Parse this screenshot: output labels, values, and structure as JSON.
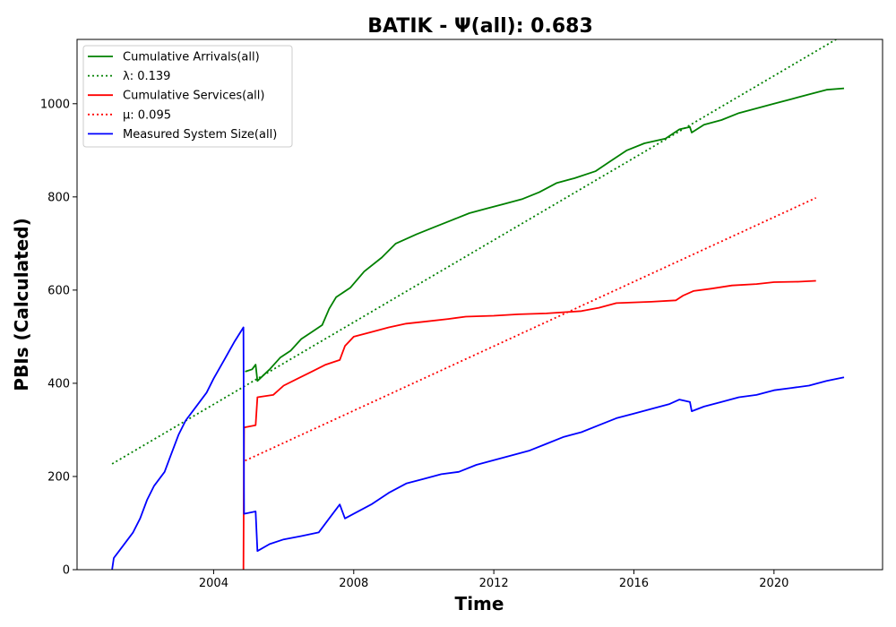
{
  "chart_data": {
    "type": "line",
    "title": "BATIK -  Ψ(all): 0.683",
    "xlabel": "Time",
    "ylabel": "PBIs (Calculated)",
    "xlim": [
      2000.1,
      2023.1
    ],
    "ylim": [
      0,
      1138
    ],
    "xticks": [
      2004,
      2008,
      2012,
      2016,
      2020
    ],
    "yticks": [
      0,
      200,
      400,
      600,
      800,
      1000
    ],
    "grid": false,
    "legend_position": "top-left",
    "series": [
      {
        "name": "Cumulative Arrivals(all)",
        "color": "#008000",
        "style": "solid",
        "points": [
          [
            2004.9,
            425
          ],
          [
            2005.1,
            430
          ],
          [
            2005.2,
            440
          ],
          [
            2005.25,
            405
          ],
          [
            2005.6,
            430
          ],
          [
            2005.9,
            455
          ],
          [
            2006.2,
            470
          ],
          [
            2006.5,
            495
          ],
          [
            2006.8,
            510
          ],
          [
            2007.1,
            525
          ],
          [
            2007.3,
            560
          ],
          [
            2007.5,
            585
          ],
          [
            2007.9,
            605
          ],
          [
            2008.3,
            640
          ],
          [
            2008.8,
            670
          ],
          [
            2009.2,
            700
          ],
          [
            2009.8,
            720
          ],
          [
            2010.3,
            735
          ],
          [
            2010.8,
            750
          ],
          [
            2011.3,
            765
          ],
          [
            2011.8,
            775
          ],
          [
            2012.3,
            785
          ],
          [
            2012.8,
            795
          ],
          [
            2013.3,
            810
          ],
          [
            2013.8,
            830
          ],
          [
            2014.3,
            840
          ],
          [
            2014.9,
            855
          ],
          [
            2015.3,
            875
          ],
          [
            2015.8,
            900
          ],
          [
            2016.3,
            915
          ],
          [
            2016.9,
            925
          ],
          [
            2017.3,
            945
          ],
          [
            2017.6,
            950
          ],
          [
            2017.65,
            938
          ],
          [
            2018.0,
            955
          ],
          [
            2018.5,
            965
          ],
          [
            2019.0,
            980
          ],
          [
            2019.5,
            990
          ],
          [
            2020.0,
            1000
          ],
          [
            2020.5,
            1010
          ],
          [
            2021.0,
            1020
          ],
          [
            2021.5,
            1030
          ],
          [
            2022.0,
            1033
          ]
        ]
      },
      {
        "name": "λ: 0.139",
        "color": "#008000",
        "style": "dotted",
        "points": [
          [
            2001.1,
            227
          ],
          [
            2022.0,
            1148
          ]
        ]
      },
      {
        "name": "Cumulative Services(all)",
        "color": "#ff0000",
        "style": "solid",
        "points": [
          [
            2004.85,
            0
          ],
          [
            2004.87,
            305
          ],
          [
            2005.2,
            310
          ],
          [
            2005.25,
            370
          ],
          [
            2005.7,
            375
          ],
          [
            2006.0,
            395
          ],
          [
            2006.4,
            410
          ],
          [
            2006.8,
            425
          ],
          [
            2007.2,
            440
          ],
          [
            2007.6,
            450
          ],
          [
            2007.75,
            480
          ],
          [
            2008.0,
            500
          ],
          [
            2008.5,
            510
          ],
          [
            2009.0,
            520
          ],
          [
            2009.5,
            528
          ],
          [
            2010.0,
            532
          ],
          [
            2010.7,
            538
          ],
          [
            2011.2,
            543
          ],
          [
            2012.0,
            545
          ],
          [
            2012.7,
            548
          ],
          [
            2013.5,
            550
          ],
          [
            2014.5,
            555
          ],
          [
            2015.0,
            562
          ],
          [
            2015.5,
            572
          ],
          [
            2016.5,
            575
          ],
          [
            2017.2,
            578
          ],
          [
            2017.4,
            588
          ],
          [
            2017.7,
            598
          ],
          [
            2018.2,
            603
          ],
          [
            2018.8,
            610
          ],
          [
            2019.5,
            613
          ],
          [
            2020.0,
            617
          ],
          [
            2020.7,
            618
          ],
          [
            2021.2,
            620
          ]
        ]
      },
      {
        "name": "μ: 0.095",
        "color": "#ff0000",
        "style": "dotted",
        "points": [
          [
            2004.9,
            234
          ],
          [
            2021.2,
            798
          ]
        ]
      },
      {
        "name": "Measured System Size(all)",
        "color": "#0000ff",
        "style": "solid",
        "points": [
          [
            2001.1,
            0
          ],
          [
            2001.15,
            25
          ],
          [
            2001.3,
            40
          ],
          [
            2001.5,
            60
          ],
          [
            2001.7,
            80
          ],
          [
            2001.9,
            110
          ],
          [
            2002.1,
            150
          ],
          [
            2002.3,
            180
          ],
          [
            2002.6,
            210
          ],
          [
            2002.8,
            250
          ],
          [
            2003.0,
            290
          ],
          [
            2003.2,
            320
          ],
          [
            2003.5,
            350
          ],
          [
            2003.8,
            380
          ],
          [
            2004.0,
            410
          ],
          [
            2004.3,
            450
          ],
          [
            2004.6,
            490
          ],
          [
            2004.85,
            520
          ],
          [
            2004.87,
            120
          ],
          [
            2005.2,
            125
          ],
          [
            2005.25,
            40
          ],
          [
            2005.6,
            55
          ],
          [
            2006.0,
            65
          ],
          [
            2006.5,
            72
          ],
          [
            2007.0,
            80
          ],
          [
            2007.3,
            110
          ],
          [
            2007.6,
            140
          ],
          [
            2007.75,
            110
          ],
          [
            2008.0,
            120
          ],
          [
            2008.5,
            140
          ],
          [
            2009.0,
            165
          ],
          [
            2009.5,
            185
          ],
          [
            2010.0,
            195
          ],
          [
            2010.5,
            205
          ],
          [
            2011.0,
            210
          ],
          [
            2011.5,
            225
          ],
          [
            2012.0,
            235
          ],
          [
            2012.5,
            245
          ],
          [
            2013.0,
            255
          ],
          [
            2013.5,
            270
          ],
          [
            2014.0,
            285
          ],
          [
            2014.5,
            295
          ],
          [
            2015.0,
            310
          ],
          [
            2015.5,
            325
          ],
          [
            2016.0,
            335
          ],
          [
            2016.5,
            345
          ],
          [
            2017.0,
            355
          ],
          [
            2017.3,
            365
          ],
          [
            2017.6,
            360
          ],
          [
            2017.65,
            340
          ],
          [
            2018.0,
            350
          ],
          [
            2018.5,
            360
          ],
          [
            2019.0,
            370
          ],
          [
            2019.5,
            375
          ],
          [
            2020.0,
            385
          ],
          [
            2020.5,
            390
          ],
          [
            2021.0,
            395
          ],
          [
            2021.5,
            405
          ],
          [
            2022.0,
            413
          ]
        ]
      }
    ]
  }
}
